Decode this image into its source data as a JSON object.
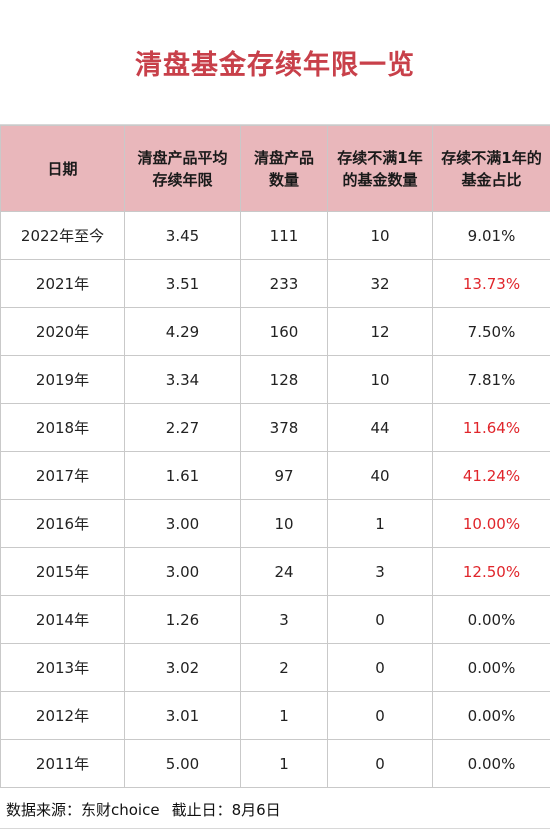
{
  "title": "清盘基金存续年限一览",
  "table": {
    "headers": [
      [
        "日期"
      ],
      [
        "清盘产品平均",
        "存续年限"
      ],
      [
        "清盘产品",
        "数量"
      ],
      [
        "存续不满1年",
        "的基金数量"
      ],
      [
        "存续不满1年的",
        "基金占比"
      ]
    ],
    "rows": [
      {
        "date": "2022年至今",
        "avg_years": "3.45",
        "count": "111",
        "under_one": "10",
        "ratio": "9.01%",
        "highlight": false
      },
      {
        "date": "2021年",
        "avg_years": "3.51",
        "count": "233",
        "under_one": "32",
        "ratio": "13.73%",
        "highlight": true
      },
      {
        "date": "2020年",
        "avg_years": "4.29",
        "count": "160",
        "under_one": "12",
        "ratio": "7.50%",
        "highlight": false
      },
      {
        "date": "2019年",
        "avg_years": "3.34",
        "count": "128",
        "under_one": "10",
        "ratio": "7.81%",
        "highlight": false
      },
      {
        "date": "2018年",
        "avg_years": "2.27",
        "count": "378",
        "under_one": "44",
        "ratio": "11.64%",
        "highlight": true
      },
      {
        "date": "2017年",
        "avg_years": "1.61",
        "count": "97",
        "under_one": "40",
        "ratio": "41.24%",
        "highlight": true
      },
      {
        "date": "2016年",
        "avg_years": "3.00",
        "count": "10",
        "under_one": "1",
        "ratio": "10.00%",
        "highlight": true
      },
      {
        "date": "2015年",
        "avg_years": "3.00",
        "count": "24",
        "under_one": "3",
        "ratio": "12.50%",
        "highlight": true
      },
      {
        "date": "2014年",
        "avg_years": "1.26",
        "count": "3",
        "under_one": "0",
        "ratio": "0.00%",
        "highlight": false
      },
      {
        "date": "2013年",
        "avg_years": "3.02",
        "count": "2",
        "under_one": "0",
        "ratio": "0.00%",
        "highlight": false
      },
      {
        "date": "2012年",
        "avg_years": "3.01",
        "count": "1",
        "under_one": "0",
        "ratio": "0.00%",
        "highlight": false
      },
      {
        "date": "2011年",
        "avg_years": "5.00",
        "count": "1",
        "under_one": "0",
        "ratio": "0.00%",
        "highlight": false
      }
    ]
  },
  "footer": {
    "source": "数据来源：东财choice",
    "cutoff": "截止日：8月6日"
  },
  "colors": {
    "title": "#c8404a",
    "header_bg": "#e9b7bb",
    "highlight_text": "#e0252b"
  }
}
